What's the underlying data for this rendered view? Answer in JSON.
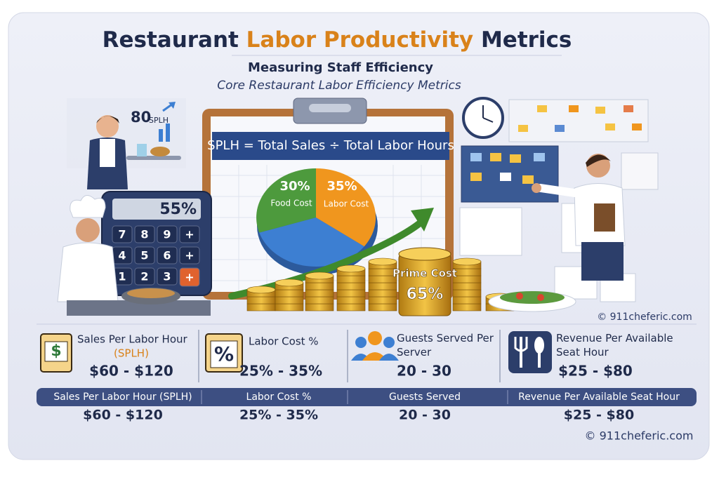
{
  "header": {
    "title_parts": [
      "Restaurant",
      "Labor Productivity",
      "Metrics"
    ],
    "subtitle": "Measuring Staff Efficiency",
    "tagline": "Core Restaurant Labor Efficiency Metrics"
  },
  "illustration": {
    "server_badge": {
      "value": "80",
      "unit": "SPLH"
    },
    "calculator_display": "55%",
    "calculator_keys": [
      "7",
      "8",
      "9",
      "+",
      "4",
      "5",
      "6",
      "+",
      "1",
      "2",
      "3",
      "+"
    ],
    "formula": "SPLH = Total Sales ÷ Total Labor Hours",
    "pie": [
      {
        "percent": "30%",
        "label": "Food Cost"
      },
      {
        "percent": "35%",
        "label": "Labor Cost"
      }
    ],
    "prime_cost": {
      "label": "Prime Cost",
      "percent": "65%"
    },
    "watermark": "© 911cheferic.com"
  },
  "metrics": [
    {
      "label": "Sales Per Labor Hour",
      "sublabel": "(SPLH)",
      "range": "$60 - $120"
    },
    {
      "label": "Labor Cost %",
      "range": "25% - 35%"
    },
    {
      "label": "Guests Served Per Server",
      "range": "20 - 30"
    },
    {
      "label": "Revenue Per Available Seat Hour",
      "range": "$25 - $80"
    }
  ],
  "table": {
    "header": [
      "Sales Per Labor Hour (SPLH)",
      "Labor Cost %",
      "Guests Served",
      "Revenue Per Available Seat Hour"
    ],
    "row": [
      "$60 - $120",
      "25% - 35%",
      "20 - 30",
      "$25 - $80"
    ]
  },
  "footer": {
    "copyright": "© 911cheferic.com"
  }
}
